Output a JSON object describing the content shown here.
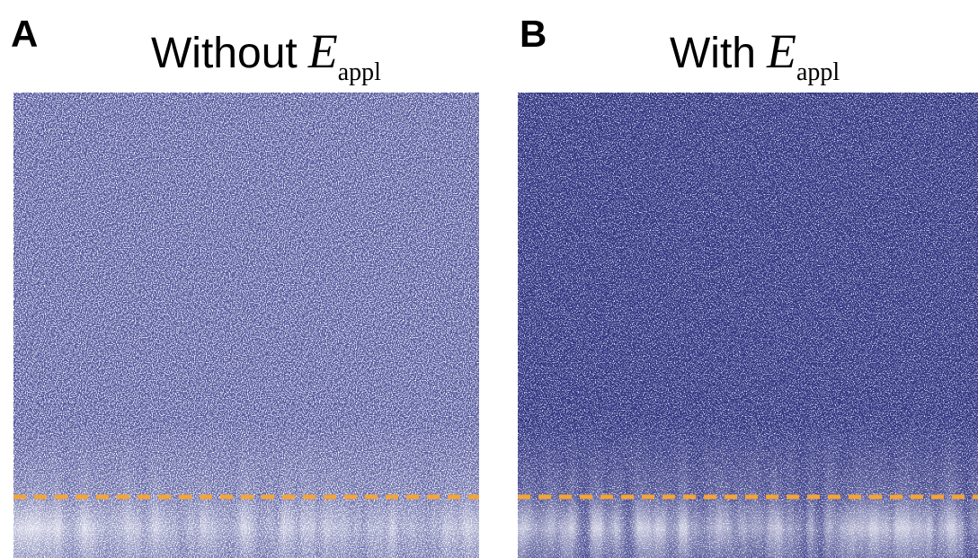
{
  "panels": [
    {
      "label": "A",
      "title": "Without",
      "title_symbol": "E",
      "title_subscript": "appl"
    },
    {
      "label": "B",
      "title": "With",
      "title_symbol": "E",
      "title_subscript": "appl"
    }
  ]
}
